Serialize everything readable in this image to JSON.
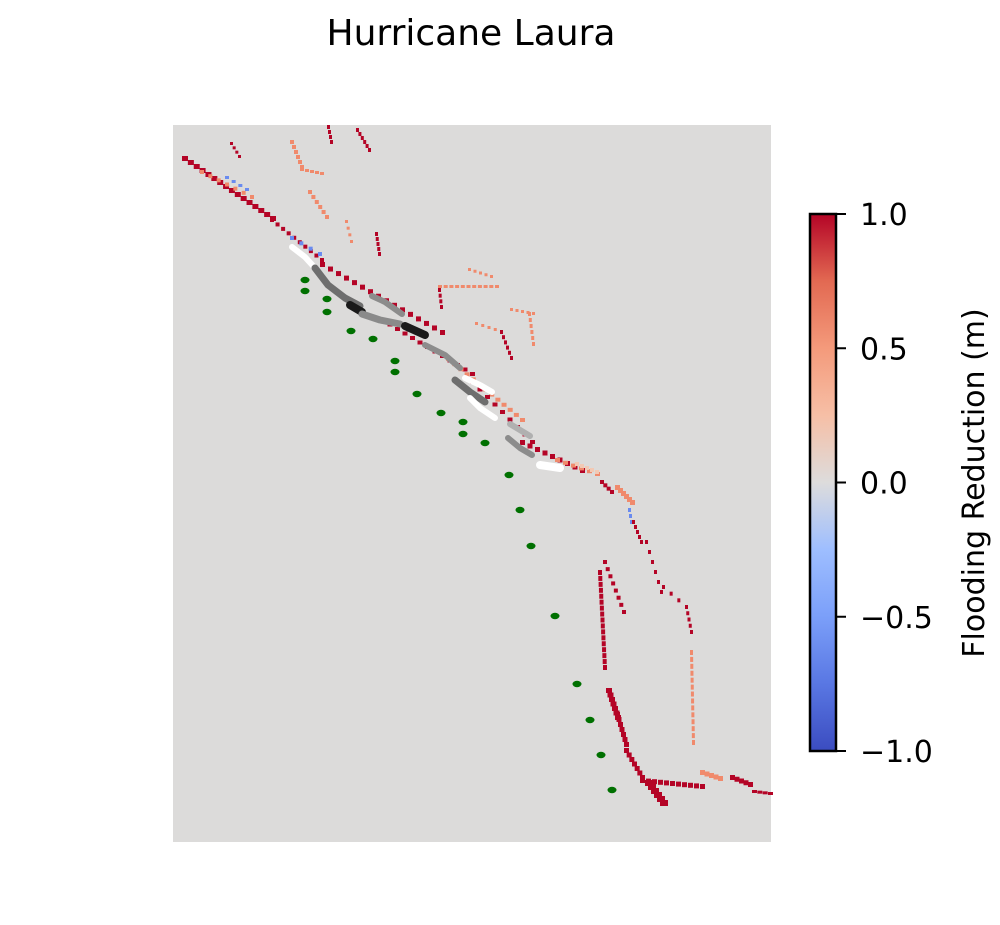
{
  "chart_data": {
    "type": "heatmap",
    "title": "Hurricane Laura",
    "colorbar": {
      "label": "Flooding Reduction (m)",
      "vmin": -1.0,
      "vmax": 1.0,
      "colormap": "coolwarm",
      "ticks": [
        1.0,
        0.5,
        0.0,
        -0.5,
        -1.0
      ],
      "tick_labels": [
        "1.0",
        "0.5",
        "0.0",
        "−0.5",
        "−1.0"
      ]
    },
    "axes": {
      "visible": false,
      "background": "#dcdbda"
    },
    "colors": {
      "max_reduction": "#b40426",
      "moderate_reduction": "#f08a6c",
      "slight_reduction": "#f2c9b4",
      "negative": "#6a8bef",
      "track_points": "#007000",
      "levee_dark": "#1a1a1a",
      "levee_gray": "#8c8c8c",
      "levee_white": "#ffffff"
    }
  }
}
